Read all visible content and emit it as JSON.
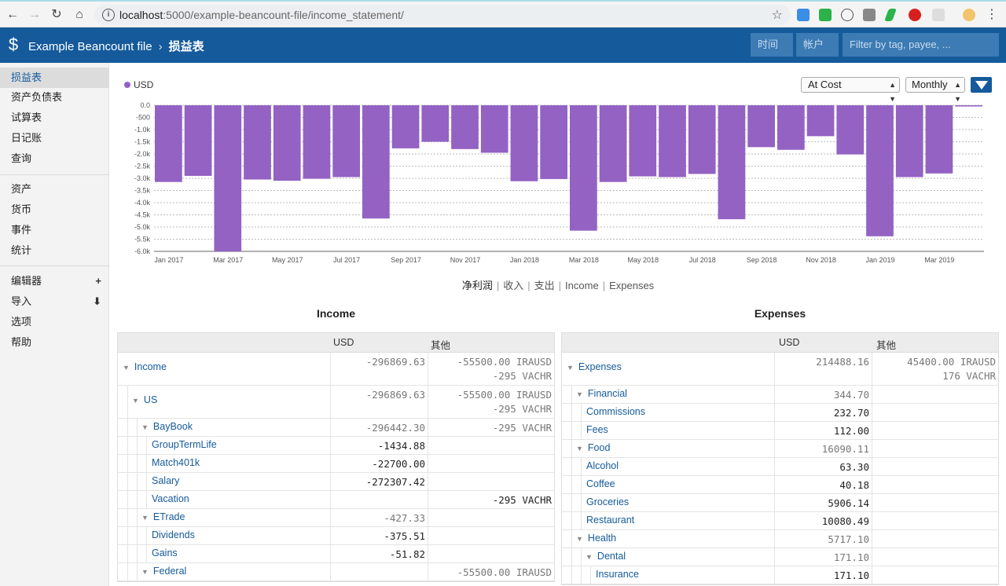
{
  "browser": {
    "url_host": "localhost",
    "url_path": ":5000/example-beancount-file/income_statement/"
  },
  "header": {
    "title": "Example Beancount file",
    "page": "损益表",
    "time_placeholder": "时间",
    "account_placeholder": "帐户",
    "filter_placeholder": "Filter by tag, payee, ..."
  },
  "sidebar": {
    "items": [
      {
        "label": "损益表"
      },
      {
        "label": "资产负债表"
      },
      {
        "label": "试算表"
      },
      {
        "label": "日记账"
      },
      {
        "label": "查询"
      },
      {
        "label": "资产"
      },
      {
        "label": "货币"
      },
      {
        "label": "事件"
      },
      {
        "label": "统计"
      },
      {
        "label": "编辑器"
      },
      {
        "label": "导入"
      },
      {
        "label": "选项"
      },
      {
        "label": "帮助"
      }
    ],
    "editor_action": "+",
    "import_action": "⬇"
  },
  "chart_controls": {
    "legend": "USD",
    "conversion": "At Cost",
    "interval": "Monthly"
  },
  "chart_tabs": [
    "净利润",
    "收入",
    "支出",
    "Income",
    "Expenses"
  ],
  "chart_data": {
    "type": "bar",
    "series": [
      {
        "name": "USD",
        "color": "#9362c3"
      }
    ],
    "categories": [
      "2017-01",
      "2017-02",
      "2017-03",
      "2017-04",
      "2017-05",
      "2017-06",
      "2017-07",
      "2017-08",
      "2017-09",
      "2017-10",
      "2017-11",
      "2017-12",
      "2018-01",
      "2018-02",
      "2018-03",
      "2018-04",
      "2018-05",
      "2018-06",
      "2018-07",
      "2018-08",
      "2018-09",
      "2018-10",
      "2018-11",
      "2018-12",
      "2019-01",
      "2019-02",
      "2019-03",
      "2019-04"
    ],
    "values": [
      -3150,
      -2900,
      -6000,
      -3050,
      -3100,
      -3020,
      -2950,
      -4650,
      -1770,
      -1500,
      -1800,
      -1950,
      -3120,
      -3030,
      -5150,
      -3150,
      -2920,
      -2950,
      -2820,
      -4680,
      -1720,
      -1830,
      -1270,
      -2020,
      -5380,
      -2950,
      -2800,
      -50
    ],
    "y_ticks": [
      "0.0",
      "-500",
      "-1.0k",
      "-1.5k",
      "-2.0k",
      "-2.5k",
      "-3.0k",
      "-3.5k",
      "-4.0k",
      "-4.5k",
      "-5.0k",
      "-5.5k",
      "-6.0k"
    ],
    "x_ticks": [
      "Jan 2017",
      "Mar 2017",
      "May 2017",
      "Jul 2017",
      "Sep 2017",
      "Nov 2017",
      "Jan 2018",
      "Mar 2018",
      "May 2018",
      "Jul 2018",
      "Sep 2018",
      "Nov 2018",
      "Jan 2019",
      "Mar 2019"
    ],
    "ylim": [
      -6000,
      0
    ]
  },
  "income": {
    "title": "Income",
    "col_usd": "USD",
    "col_other": "其他",
    "rows": [
      {
        "name": "Income",
        "depth": 0,
        "caret": true,
        "usd": "-296869.63",
        "other": "-55500.00 IRAUSD",
        "other2": "-295 VACHR",
        "dim": true
      },
      {
        "name": "US",
        "depth": 1,
        "caret": true,
        "usd": "-296869.63",
        "other": "-55500.00 IRAUSD",
        "other2": "-295 VACHR",
        "dim": true
      },
      {
        "name": "BayBook",
        "depth": 2,
        "caret": true,
        "usd": "-296442.30",
        "other": "-295 VACHR",
        "other2": "",
        "dim": true
      },
      {
        "name": "GroupTermLife",
        "depth": 3,
        "caret": false,
        "usd": "-1434.88",
        "other": "",
        "other2": "",
        "dim": false
      },
      {
        "name": "Match401k",
        "depth": 3,
        "caret": false,
        "usd": "-22700.00",
        "other": "",
        "other2": "",
        "dim": false
      },
      {
        "name": "Salary",
        "depth": 3,
        "caret": false,
        "usd": "-272307.42",
        "other": "",
        "other2": "",
        "dim": false
      },
      {
        "name": "Vacation",
        "depth": 3,
        "caret": false,
        "usd": "",
        "other": "-295 VACHR",
        "other2": "",
        "dim": false
      },
      {
        "name": "ETrade",
        "depth": 2,
        "caret": true,
        "usd": "-427.33",
        "other": "",
        "other2": "",
        "dim": true
      },
      {
        "name": "Dividends",
        "depth": 3,
        "caret": false,
        "usd": "-375.51",
        "other": "",
        "other2": "",
        "dim": false
      },
      {
        "name": "Gains",
        "depth": 3,
        "caret": false,
        "usd": "-51.82",
        "other": "",
        "other2": "",
        "dim": false
      },
      {
        "name": "Federal",
        "depth": 2,
        "caret": true,
        "usd": "",
        "other": "-55500.00 IRAUSD",
        "other2": "",
        "dim": true
      }
    ]
  },
  "expenses": {
    "title": "Expenses",
    "col_usd": "USD",
    "col_other": "其他",
    "rows": [
      {
        "name": "Expenses",
        "depth": 0,
        "caret": true,
        "usd": "214488.16",
        "other": "45400.00 IRAUSD",
        "other2": "176 VACHR",
        "dim": true
      },
      {
        "name": "Financial",
        "depth": 1,
        "caret": true,
        "usd": "344.70",
        "other": "",
        "other2": "",
        "dim": true
      },
      {
        "name": "Commissions",
        "depth": 2,
        "caret": false,
        "usd": "232.70",
        "other": "",
        "other2": "",
        "dim": false
      },
      {
        "name": "Fees",
        "depth": 2,
        "caret": false,
        "usd": "112.00",
        "other": "",
        "other2": "",
        "dim": false
      },
      {
        "name": "Food",
        "depth": 1,
        "caret": true,
        "usd": "16090.11",
        "other": "",
        "other2": "",
        "dim": true
      },
      {
        "name": "Alcohol",
        "depth": 2,
        "caret": false,
        "usd": "63.30",
        "other": "",
        "other2": "",
        "dim": false
      },
      {
        "name": "Coffee",
        "depth": 2,
        "caret": false,
        "usd": "40.18",
        "other": "",
        "other2": "",
        "dim": false
      },
      {
        "name": "Groceries",
        "depth": 2,
        "caret": false,
        "usd": "5906.14",
        "other": "",
        "other2": "",
        "dim": false
      },
      {
        "name": "Restaurant",
        "depth": 2,
        "caret": false,
        "usd": "10080.49",
        "other": "",
        "other2": "",
        "dim": false
      },
      {
        "name": "Health",
        "depth": 1,
        "caret": true,
        "usd": "5717.10",
        "other": "",
        "other2": "",
        "dim": true
      },
      {
        "name": "Dental",
        "depth": 2,
        "caret": true,
        "usd": "171.10",
        "other": "",
        "other2": "",
        "dim": true
      },
      {
        "name": "Insurance",
        "depth": 3,
        "caret": false,
        "usd": "171.10",
        "other": "",
        "other2": "",
        "dim": false
      }
    ]
  }
}
